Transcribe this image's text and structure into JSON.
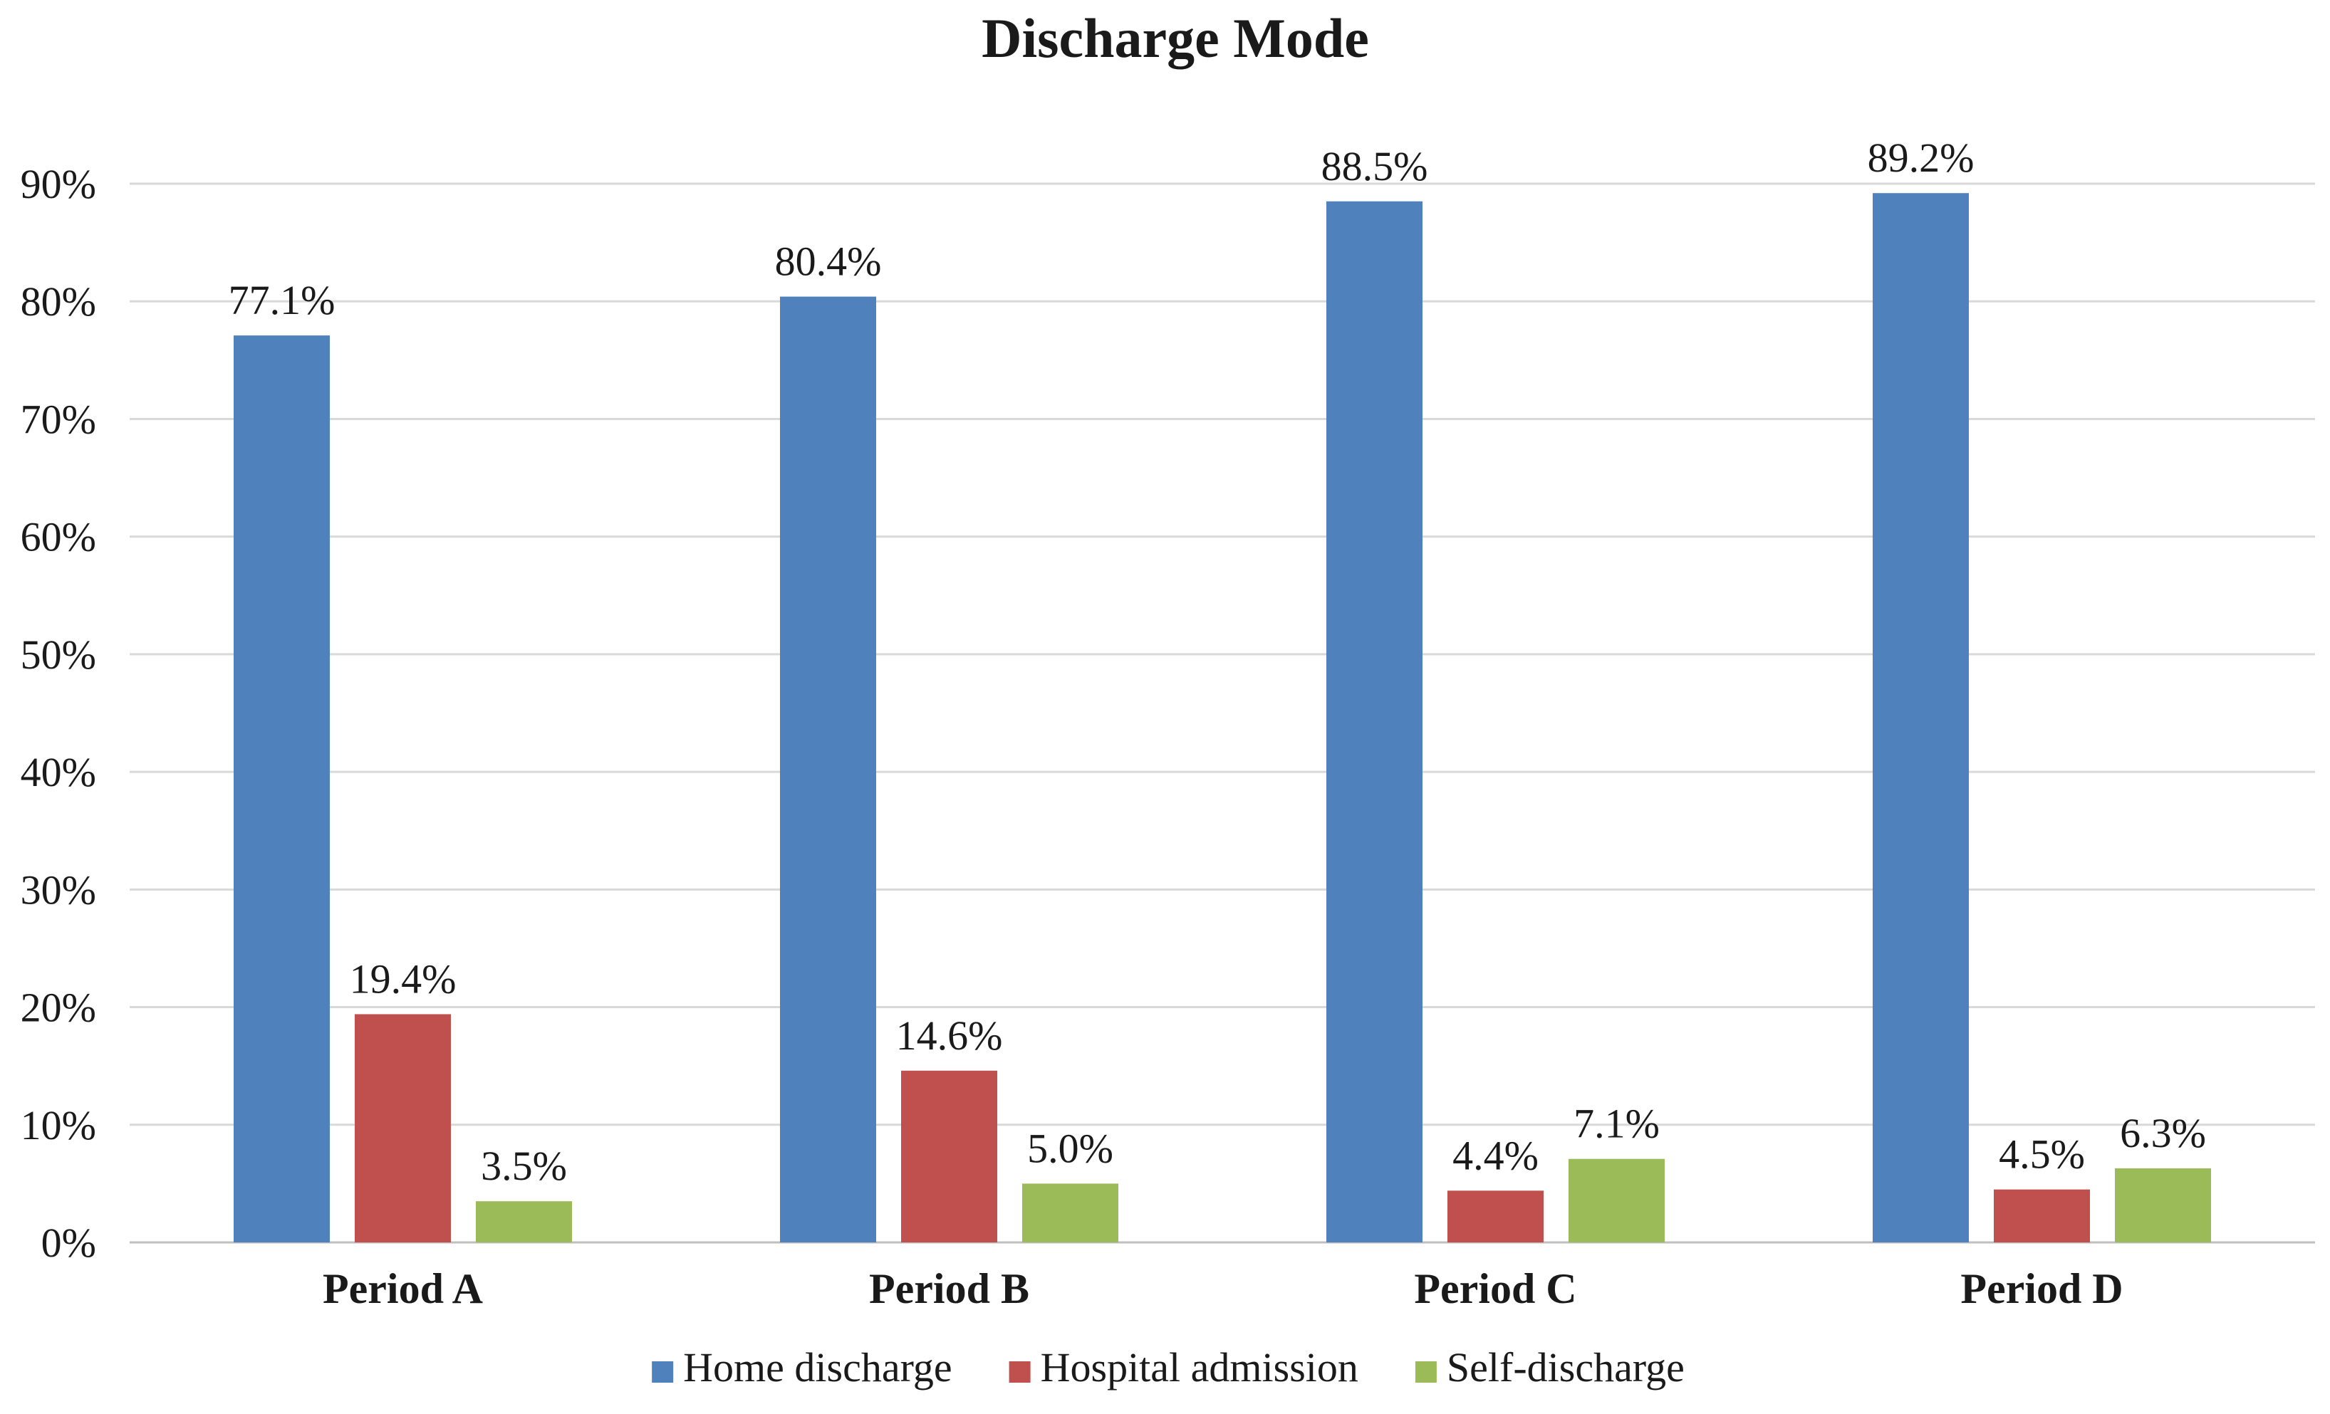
{
  "chart_data": {
    "type": "bar",
    "title": "Discharge Mode",
    "xlabel": "",
    "ylabel": "",
    "categories": [
      "Period A",
      "Period B",
      "Period C",
      "Period D"
    ],
    "series": [
      {
        "name": "Home discharge",
        "color": "#4f81bd",
        "values": [
          77.1,
          80.4,
          88.5,
          89.2
        ],
        "labels": [
          "77.1%",
          "80.4%",
          "88.5%",
          "89.2%"
        ]
      },
      {
        "name": "Hospital admission",
        "color": "#c0504d",
        "values": [
          19.4,
          14.6,
          4.4,
          4.5
        ],
        "labels": [
          "19.4%",
          "14.6%",
          "4.4%",
          "4.5%"
        ]
      },
      {
        "name": "Self-discharge",
        "color": "#9bbb59",
        "values": [
          3.5,
          5.0,
          7.1,
          6.3
        ],
        "labels": [
          "3.5%",
          "5.0%",
          "7.1%",
          "6.3%"
        ]
      }
    ],
    "yticks": [
      0,
      10,
      20,
      30,
      40,
      50,
      60,
      70,
      80,
      90
    ],
    "ytick_labels": [
      "0%",
      "10%",
      "20%",
      "30%",
      "40%",
      "50%",
      "60%",
      "70%",
      "80%",
      "90%"
    ],
    "ylim": [
      0,
      90
    ],
    "grid": true,
    "legend_position": "bottom-center"
  }
}
